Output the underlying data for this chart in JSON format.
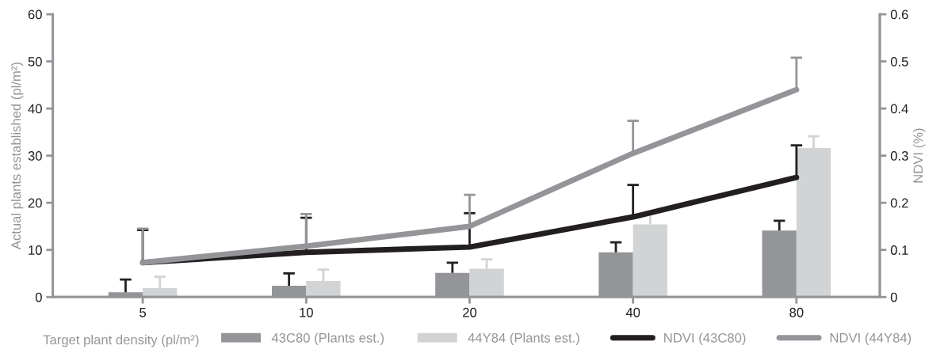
{
  "chart_data": {
    "type": "bar",
    "xlabel": "Target plant density (pl/m²)",
    "ylabel": "Actual plants established (pl/m²)",
    "y2label": "NDVI (%)",
    "categories": [
      "5",
      "10",
      "20",
      "40",
      "80"
    ],
    "series": [
      {
        "name": "43C80 (Plants est.)",
        "color": "#939598",
        "values": [
          1.0,
          2.4,
          5.1,
          9.5,
          14.1
        ],
        "errors": [
          [
            1.0,
            3.7
          ],
          [
            2.4,
            5.0
          ],
          [
            5.1,
            7.3
          ],
          [
            9.5,
            11.6
          ],
          [
            14.1,
            16.2
          ]
        ]
      },
      {
        "name": "44Y84 (Plants est.)",
        "color": "#d1d3d4",
        "values": [
          1.9,
          3.4,
          6.0,
          15.4,
          31.6
        ],
        "errors": [
          [
            1.9,
            4.3
          ],
          [
            3.4,
            5.8
          ],
          [
            6.0,
            8.0
          ],
          [
            15.4,
            17.7
          ],
          [
            31.6,
            34.1
          ]
        ]
      },
      {
        "name": "NDVI (43C80)",
        "type": "line",
        "axis": "y2",
        "color": "#231f20",
        "values": [
          0.073,
          0.095,
          0.106,
          0.17,
          0.254
        ],
        "errors": [
          [
            0.073,
            0.142
          ],
          [
            0.095,
            0.168
          ],
          [
            0.106,
            0.178
          ],
          [
            0.17,
            0.238
          ],
          [
            0.254,
            0.322
          ]
        ]
      },
      {
        "name": "NDVI (44Y84)",
        "type": "line",
        "axis": "y2",
        "color": "#939598",
        "values": [
          0.073,
          0.108,
          0.15,
          0.305,
          0.44
        ],
        "errors": [
          [
            0.073,
            0.145
          ],
          [
            0.108,
            0.176
          ],
          [
            0.15,
            0.217
          ],
          [
            0.305,
            0.374
          ],
          [
            0.44,
            0.508
          ]
        ]
      }
    ],
    "ylim": [
      0,
      60
    ],
    "yticks": [
      0,
      10,
      20,
      30,
      40,
      50,
      60
    ],
    "y2lim": [
      0,
      0.6
    ],
    "y2ticks": [
      0,
      0.1,
      0.2,
      0.3,
      0.4,
      0.5,
      0.6
    ],
    "grid": false,
    "legend": "bottom",
    "marker": "none",
    "line_style": "solid"
  }
}
